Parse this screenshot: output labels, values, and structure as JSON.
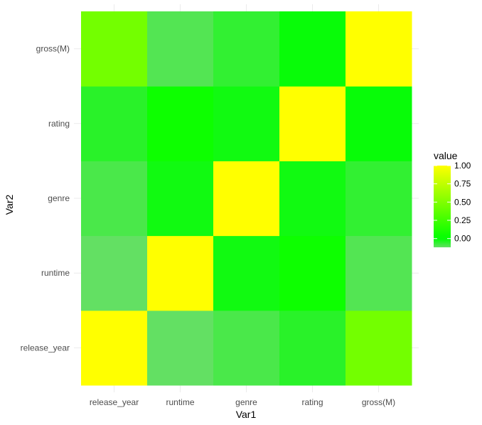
{
  "chart_data": {
    "type": "heatmap",
    "title": "",
    "xlabel": "Var1",
    "ylabel": "Var2",
    "x_categories": [
      "release_year",
      "runtime",
      "genre",
      "rating",
      "gross(M)"
    ],
    "y_categories": [
      "release_year",
      "runtime",
      "genre",
      "rating",
      "gross(M)"
    ],
    "values": [
      [
        1.0,
        -0.12,
        -0.09,
        -0.05,
        0.45
      ],
      [
        -0.12,
        1.0,
        -0.02,
        0.05,
        -0.1
      ],
      [
        -0.09,
        -0.02,
        1.0,
        -0.02,
        -0.06
      ],
      [
        -0.05,
        0.05,
        -0.02,
        1.0,
        -0.01
      ],
      [
        0.45,
        -0.1,
        -0.06,
        -0.01,
        1.0
      ]
    ],
    "legend": {
      "title": "value",
      "ticks": [
        "1.00",
        "0.75",
        "0.50",
        "0.25",
        "0.00"
      ],
      "tick_values": [
        1.0,
        0.75,
        0.5,
        0.25,
        0.0
      ],
      "range": [
        -0.12,
        1.0
      ],
      "placement": "right"
    },
    "color_scale": {
      "low": "#63e063",
      "mid": "#00ff00",
      "high": "#ffff00",
      "midpoint": 0
    },
    "grid": true
  }
}
